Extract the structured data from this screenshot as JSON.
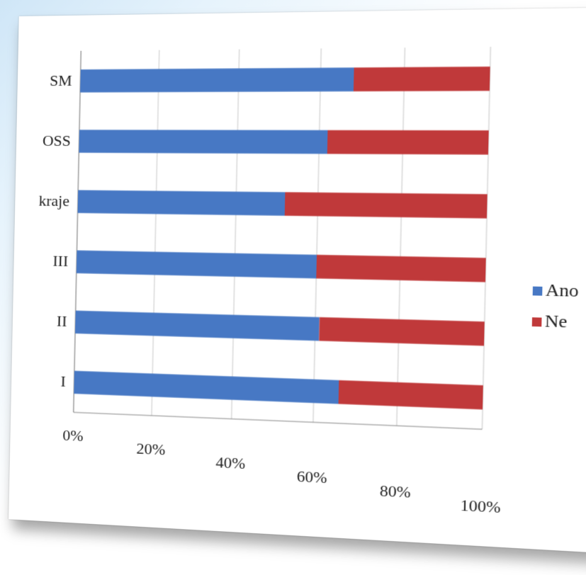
{
  "chart_data": {
    "type": "bar",
    "orientation": "horizontal",
    "stacked": "percent",
    "categories": [
      "I",
      "II",
      "III",
      "kraje",
      "OSS",
      "SM"
    ],
    "series": [
      {
        "name": "Ano",
        "color": "#4778c4",
        "values": [
          66,
          61,
          60,
          52,
          62,
          68
        ]
      },
      {
        "name": "Ne",
        "color": "#c0393a",
        "values": [
          34,
          39,
          40,
          48,
          38,
          32
        ]
      }
    ],
    "xticks": [
      "0%",
      "20%",
      "40%",
      "60%",
      "80%",
      "100%"
    ],
    "xlim": [
      0,
      100
    ],
    "grid": true,
    "legend_position": "right"
  }
}
